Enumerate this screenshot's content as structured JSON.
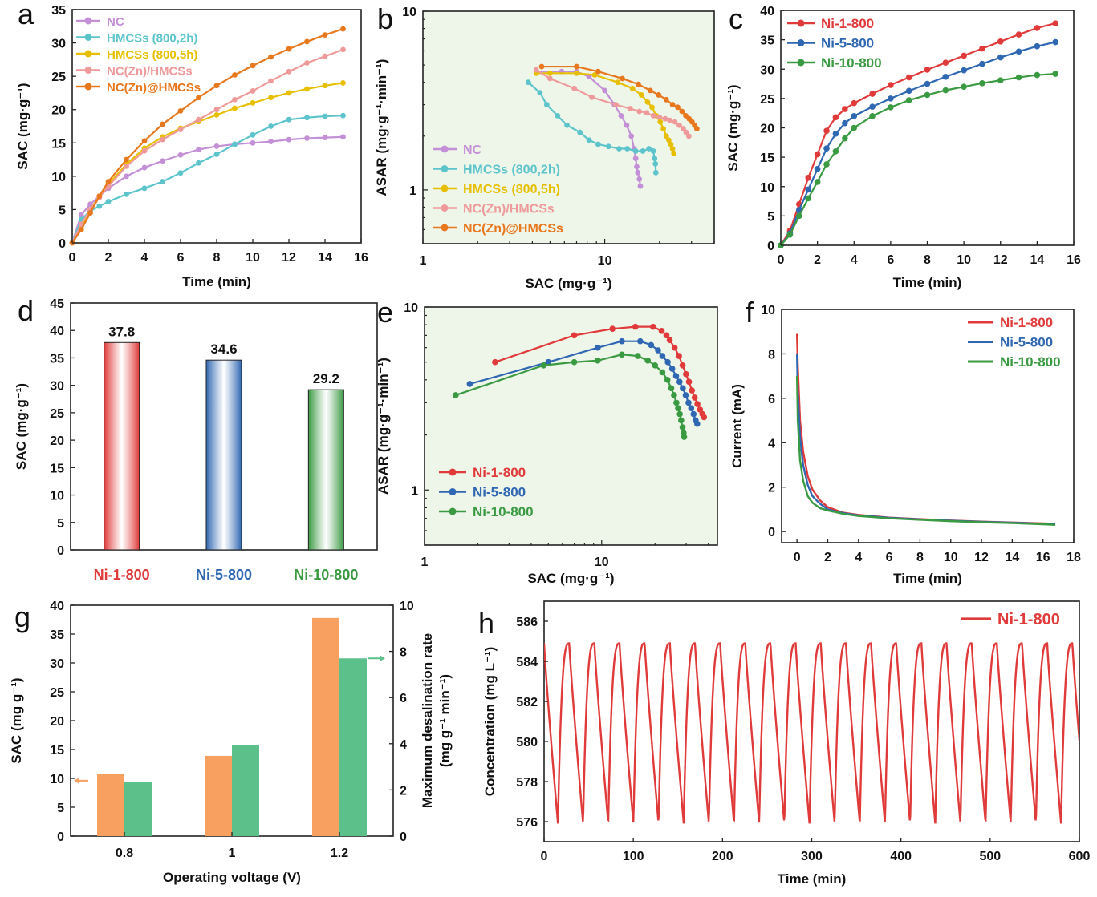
{
  "chart_data": [
    {
      "id": "a",
      "panel_label": "a",
      "type": "line",
      "xlabel": "Time (min)",
      "ylabel": "SAC (mg·g⁻¹)",
      "xlim": [
        0,
        16
      ],
      "ylim": [
        0,
        35
      ],
      "xticks": [
        0,
        2,
        4,
        6,
        8,
        10,
        12,
        14,
        16
      ],
      "yticks": [
        0,
        5,
        10,
        15,
        20,
        25,
        30,
        35
      ],
      "legend_position": "top-left",
      "plot_background": "#ffffff",
      "series": [
        {
          "name": "NC",
          "color": "#c38fd6",
          "x": [
            0,
            0.5,
            1,
            1.5,
            2,
            3,
            4,
            5,
            6,
            7,
            8,
            9,
            10,
            11,
            12,
            13,
            14,
            15
          ],
          "y": [
            0,
            4.2,
            5.8,
            7.0,
            8.2,
            10.0,
            11.3,
            12.3,
            13.2,
            14.0,
            14.5,
            14.8,
            15.0,
            15.2,
            15.5,
            15.7,
            15.8,
            15.9
          ]
        },
        {
          "name": "HMCSs (800,2h)",
          "color": "#5ec4cc",
          "x": [
            0,
            0.5,
            1,
            1.5,
            2,
            3,
            4,
            5,
            6,
            7,
            8,
            9,
            10,
            11,
            12,
            13,
            14,
            15
          ],
          "y": [
            0,
            3.5,
            4.8,
            5.5,
            6.2,
            7.3,
            8.2,
            9.2,
            10.5,
            12.0,
            13.3,
            14.8,
            16.2,
            17.5,
            18.5,
            18.8,
            19.0,
            19.1
          ]
        },
        {
          "name": "HMCSs (800,5h)",
          "color": "#e6c000",
          "x": [
            0,
            0.5,
            1,
            1.5,
            2,
            3,
            4,
            5,
            6,
            7,
            8,
            9,
            10,
            11,
            12,
            13,
            14,
            15
          ],
          "y": [
            0,
            2.5,
            5.0,
            7.0,
            8.8,
            11.8,
            14.2,
            15.9,
            17.2,
            18.2,
            19.2,
            20.2,
            21.0,
            21.8,
            22.5,
            23.1,
            23.6,
            24.0
          ]
        },
        {
          "name": "NC(Zn)/HMCSs",
          "color": "#ef9a9a",
          "x": [
            0,
            0.5,
            1,
            1.5,
            2,
            3,
            4,
            5,
            6,
            7,
            8,
            9,
            10,
            11,
            12,
            13,
            14,
            15
          ],
          "y": [
            0,
            2.8,
            5.0,
            6.8,
            8.5,
            11.5,
            13.8,
            15.5,
            17.0,
            18.5,
            20.0,
            21.5,
            22.8,
            24.3,
            25.7,
            27.0,
            28.0,
            29.0
          ]
        },
        {
          "name": "NC(Zn)@HMCSs",
          "color": "#e8781e",
          "x": [
            0,
            0.5,
            1,
            1.5,
            2,
            3,
            4,
            5,
            6,
            7,
            8,
            9,
            10,
            11,
            12,
            13,
            14,
            15
          ],
          "y": [
            0,
            2.0,
            4.5,
            7.0,
            9.2,
            12.5,
            15.3,
            17.8,
            19.8,
            21.8,
            23.6,
            25.2,
            26.6,
            27.9,
            29.1,
            30.2,
            31.2,
            32.1
          ]
        }
      ]
    },
    {
      "id": "b",
      "panel_label": "b",
      "type": "line",
      "xlabel": "SAC (mg·g⁻¹)",
      "ylabel": "ASAR (mg·g⁻¹·min⁻¹)",
      "xscale": "log",
      "yscale": "log",
      "xlim": [
        1,
        40
      ],
      "ylim": [
        0.5,
        10
      ],
      "xticks": [
        1,
        10
      ],
      "yticks": [
        1,
        10
      ],
      "legend_position": "lower-left",
      "plot_background": "#eef6ea",
      "series": [
        {
          "name": "NC",
          "color": "#c38fd6",
          "x": [
            4.2,
            5.8,
            7.0,
            8.2,
            10.0,
            11.3,
            12.3,
            13.2,
            14.0,
            14.5,
            14.8,
            15.0,
            15.2,
            15.5,
            15.7
          ],
          "y": [
            4.6,
            4.6,
            4.6,
            4.3,
            3.6,
            3.0,
            2.6,
            2.3,
            2.0,
            1.7,
            1.5,
            1.35,
            1.25,
            1.15,
            1.05
          ]
        },
        {
          "name": "HMCSs (800,2h)",
          "color": "#5ec4cc",
          "x": [
            3.8,
            4.4,
            4.8,
            5.5,
            6.2,
            7.3,
            8.2,
            9.2,
            10.5,
            12.0,
            13.3,
            14.8,
            16.2,
            17.5,
            18.5,
            18.8,
            19.0,
            19.1
          ],
          "y": [
            4.0,
            3.5,
            3.0,
            2.6,
            2.3,
            2.1,
            1.9,
            1.8,
            1.75,
            1.7,
            1.7,
            1.65,
            1.65,
            1.7,
            1.65,
            1.5,
            1.4,
            1.25
          ]
        },
        {
          "name": "HMCSs (800,5h)",
          "color": "#e6c000",
          "x": [
            4.2,
            5.0,
            7.0,
            8.8,
            11.8,
            14.2,
            15.9,
            17.2,
            18.2,
            19.2,
            20.2,
            21.0,
            21.8,
            22.5,
            23.1,
            23.6,
            24.0
          ],
          "y": [
            4.5,
            4.5,
            4.5,
            4.4,
            4.0,
            3.7,
            3.4,
            3.1,
            2.9,
            2.6,
            2.4,
            2.2,
            2.0,
            1.9,
            1.8,
            1.7,
            1.6
          ]
        },
        {
          "name": "NC(Zn)/HMCSs",
          "color": "#ef9a9a",
          "x": [
            4.2,
            5.0,
            6.8,
            8.5,
            11.5,
            13.8,
            15.5,
            17.0,
            18.5,
            20.0,
            21.5,
            22.8,
            24.3,
            25.7,
            27.0,
            28.0,
            29.0
          ],
          "y": [
            4.7,
            4.2,
            3.7,
            3.3,
            3.0,
            2.85,
            2.75,
            2.7,
            2.6,
            2.55,
            2.5,
            2.45,
            2.4,
            2.3,
            2.2,
            2.1,
            2.0
          ]
        },
        {
          "name": "NC(Zn)@HMCSs",
          "color": "#e8781e",
          "x": [
            4.5,
            7.0,
            9.2,
            12.5,
            15.3,
            17.8,
            19.8,
            21.8,
            23.6,
            25.2,
            26.6,
            27.9,
            29.1,
            30.2,
            31.2,
            32.1
          ],
          "y": [
            4.9,
            4.9,
            4.6,
            4.2,
            3.9,
            3.6,
            3.4,
            3.2,
            3.0,
            2.9,
            2.75,
            2.6,
            2.5,
            2.4,
            2.3,
            2.2
          ]
        }
      ]
    },
    {
      "id": "c",
      "panel_label": "c",
      "type": "line",
      "xlabel": "Time (min)",
      "ylabel": "SAC (mg·g⁻¹)",
      "xlim": [
        0,
        16
      ],
      "ylim": [
        0,
        40
      ],
      "xticks": [
        0,
        2,
        4,
        6,
        8,
        10,
        12,
        14,
        16
      ],
      "yticks": [
        0,
        5,
        10,
        15,
        20,
        25,
        30,
        35,
        40
      ],
      "legend_position": "top-left",
      "plot_background": "#ffffff",
      "series": [
        {
          "name": "Ni-1-800",
          "color": "#e03a3a",
          "x": [
            0,
            0.5,
            1,
            1.5,
            2,
            2.5,
            3,
            3.5,
            4,
            5,
            6,
            7,
            8,
            9,
            10,
            11,
            12,
            13,
            14,
            15
          ],
          "y": [
            0,
            2.5,
            7.0,
            11.5,
            15.5,
            19.5,
            21.8,
            23.2,
            24.2,
            25.8,
            27.3,
            28.6,
            29.9,
            31.1,
            32.3,
            33.5,
            34.7,
            35.9,
            37.0,
            37.8
          ]
        },
        {
          "name": "Ni-5-800",
          "color": "#2f67b2",
          "x": [
            0,
            0.5,
            1,
            1.5,
            2,
            2.5,
            3,
            3.5,
            4,
            5,
            6,
            7,
            8,
            9,
            10,
            11,
            12,
            13,
            14,
            15
          ],
          "y": [
            0,
            2.0,
            6.0,
            9.5,
            13.0,
            16.5,
            19.0,
            20.8,
            22.0,
            23.6,
            25.0,
            26.3,
            27.5,
            28.7,
            29.8,
            30.9,
            32.0,
            33.0,
            33.9,
            34.6
          ]
        },
        {
          "name": "Ni-10-800",
          "color": "#3a9a42",
          "x": [
            0,
            0.5,
            1,
            1.5,
            2,
            2.5,
            3,
            3.5,
            4,
            5,
            6,
            7,
            8,
            9,
            10,
            11,
            12,
            13,
            14,
            15
          ],
          "y": [
            0,
            1.8,
            5.0,
            8.0,
            10.8,
            13.8,
            16.0,
            18.2,
            20.0,
            22.0,
            23.5,
            24.7,
            25.6,
            26.4,
            27.0,
            27.6,
            28.1,
            28.6,
            29.0,
            29.2
          ]
        }
      ]
    },
    {
      "id": "d",
      "panel_label": "d",
      "type": "bar",
      "ylabel": "SAC (mg·g⁻¹)",
      "ylim": [
        0,
        45
      ],
      "yticks": [
        0,
        5,
        10,
        15,
        20,
        25,
        30,
        35,
        40,
        45
      ],
      "categories": [
        "Ni-1-800",
        "Ni-5-800",
        "Ni-10-800"
      ],
      "values": [
        37.8,
        34.6,
        29.2
      ],
      "value_labels": [
        "37.8",
        "34.6",
        "29.2"
      ],
      "colors": [
        "#e03a3a",
        "#2f67b2",
        "#3a9a42"
      ]
    },
    {
      "id": "e",
      "panel_label": "e",
      "type": "line",
      "xlabel": "SAC (mg·g⁻¹)",
      "ylabel": "ASAR (mg·g⁻¹·min⁻¹)",
      "xscale": "log",
      "yscale": "log",
      "xlim": [
        1,
        45
      ],
      "ylim": [
        0.5,
        10
      ],
      "xticks": [
        1,
        10
      ],
      "yticks": [
        1,
        10
      ],
      "legend_position": "lower-left",
      "plot_background": "#eef6ea",
      "series": [
        {
          "name": "Ni-1-800",
          "color": "#e03a3a",
          "x": [
            2.5,
            7.0,
            11.5,
            15.5,
            19.5,
            21.8,
            23.2,
            24.2,
            25.8,
            27.3,
            28.6,
            29.9,
            31.1,
            32.3,
            33.5,
            34.7,
            35.9,
            37.0,
            37.8
          ],
          "y": [
            5.0,
            7.0,
            7.6,
            7.8,
            7.8,
            7.4,
            7.0,
            6.6,
            6.0,
            5.4,
            4.8,
            4.3,
            3.9,
            3.5,
            3.2,
            2.95,
            2.75,
            2.6,
            2.5
          ]
        },
        {
          "name": "Ni-5-800",
          "color": "#2f67b2",
          "x": [
            1.8,
            5.0,
            9.5,
            13.0,
            16.5,
            19.0,
            20.8,
            22.0,
            23.6,
            25.0,
            26.3,
            27.5,
            28.7,
            29.8,
            30.9,
            32.0,
            33.0,
            33.9,
            34.6
          ],
          "y": [
            3.8,
            5.0,
            6.0,
            6.5,
            6.5,
            6.2,
            5.8,
            5.4,
            5.0,
            4.6,
            4.2,
            3.9,
            3.6,
            3.3,
            3.0,
            2.8,
            2.6,
            2.4,
            2.3
          ]
        },
        {
          "name": "Ni-10-800",
          "color": "#3a9a42",
          "x": [
            1.5,
            4.7,
            7.0,
            9.5,
            13.0,
            16.0,
            18.2,
            20.0,
            22.0,
            23.5,
            24.7,
            25.6,
            26.4,
            27.0,
            27.6,
            28.1,
            28.6,
            29.0,
            29.2
          ],
          "y": [
            3.3,
            4.8,
            5.0,
            5.1,
            5.5,
            5.4,
            5.1,
            4.8,
            4.4,
            4.0,
            3.6,
            3.3,
            3.0,
            2.8,
            2.6,
            2.4,
            2.2,
            2.05,
            1.95
          ]
        }
      ]
    },
    {
      "id": "f",
      "panel_label": "f",
      "type": "line",
      "xlabel": "Time (min)",
      "ylabel": "Current (mA)",
      "xlim": [
        -1,
        18
      ],
      "ylim": [
        -0.5,
        10
      ],
      "xticks": [
        0,
        2,
        4,
        6,
        8,
        10,
        12,
        14,
        16,
        18
      ],
      "yticks": [
        0,
        2,
        4,
        6,
        8,
        10
      ],
      "legend_position": "top-right",
      "plot_background": "#ffffff",
      "series": [
        {
          "name": "Ni-1-800",
          "color": "#e03a3a",
          "x": [
            0,
            0.05,
            0.2,
            0.4,
            0.7,
            1,
            1.5,
            2,
            3,
            4,
            6,
            8,
            10,
            12,
            14,
            16,
            16.8
          ],
          "y": [
            8.9,
            7.5,
            5.0,
            3.6,
            2.5,
            1.9,
            1.4,
            1.1,
            0.85,
            0.75,
            0.63,
            0.56,
            0.5,
            0.45,
            0.41,
            0.37,
            0.35
          ]
        },
        {
          "name": "Ni-5-800",
          "color": "#2f67b2",
          "x": [
            0,
            0.05,
            0.2,
            0.4,
            0.7,
            1,
            1.5,
            2,
            3,
            4,
            6,
            8,
            10,
            12,
            14,
            16,
            16.8
          ],
          "y": [
            8.0,
            6.3,
            4.2,
            3.0,
            2.1,
            1.6,
            1.25,
            1.0,
            0.83,
            0.73,
            0.62,
            0.55,
            0.49,
            0.44,
            0.4,
            0.35,
            0.33
          ]
        },
        {
          "name": "Ni-10-800",
          "color": "#3a9a42",
          "x": [
            0,
            0.05,
            0.2,
            0.4,
            0.7,
            1,
            1.5,
            2,
            3,
            4,
            6,
            8,
            10,
            12,
            14,
            16,
            16.8
          ],
          "y": [
            7.0,
            5.0,
            3.2,
            2.3,
            1.6,
            1.3,
            1.05,
            0.95,
            0.8,
            0.7,
            0.6,
            0.53,
            0.47,
            0.42,
            0.38,
            0.33,
            0.3
          ]
        }
      ]
    },
    {
      "id": "g",
      "panel_label": "g",
      "type": "bar",
      "xlabel": "Operating voltage (V)",
      "ylabel": "SAC (mg g⁻¹)",
      "y2label_line1": "Maximum desalination rate",
      "y2label_line2": "(mg g⁻¹ min⁻¹)",
      "categories": [
        "0.8",
        "1",
        "1.2"
      ],
      "ylim": [
        0,
        40
      ],
      "yticks": [
        0,
        5,
        10,
        15,
        20,
        25,
        30,
        35,
        40
      ],
      "y2lim": [
        0,
        10
      ],
      "y2ticks": [
        0,
        2,
        4,
        6,
        8,
        10
      ],
      "series": [
        {
          "axis": "left",
          "color": "#f7a060",
          "values": [
            10.8,
            13.9,
            37.8
          ]
        },
        {
          "axis": "right",
          "color": "#5cc08a",
          "values": [
            2.35,
            3.95,
            7.7
          ]
        }
      ]
    },
    {
      "id": "h",
      "panel_label": "h",
      "type": "line",
      "xlabel": "Time (min)",
      "ylabel": "Concentration (mg L⁻¹)",
      "xlim": [
        0,
        600
      ],
      "ylim": [
        575,
        587
      ],
      "xticks": [
        0,
        100,
        200,
        300,
        400,
        500,
        600
      ],
      "yticks": [
        576,
        578,
        580,
        582,
        584,
        586
      ],
      "legend_position": "top-right",
      "plot_background": "#ffffff",
      "cycles": 21,
      "period_min": 28.2,
      "max_value": 584.9,
      "min_value": 575.9,
      "series": [
        {
          "name": "Ni-1-800",
          "color": "#e03a3a"
        }
      ]
    }
  ]
}
